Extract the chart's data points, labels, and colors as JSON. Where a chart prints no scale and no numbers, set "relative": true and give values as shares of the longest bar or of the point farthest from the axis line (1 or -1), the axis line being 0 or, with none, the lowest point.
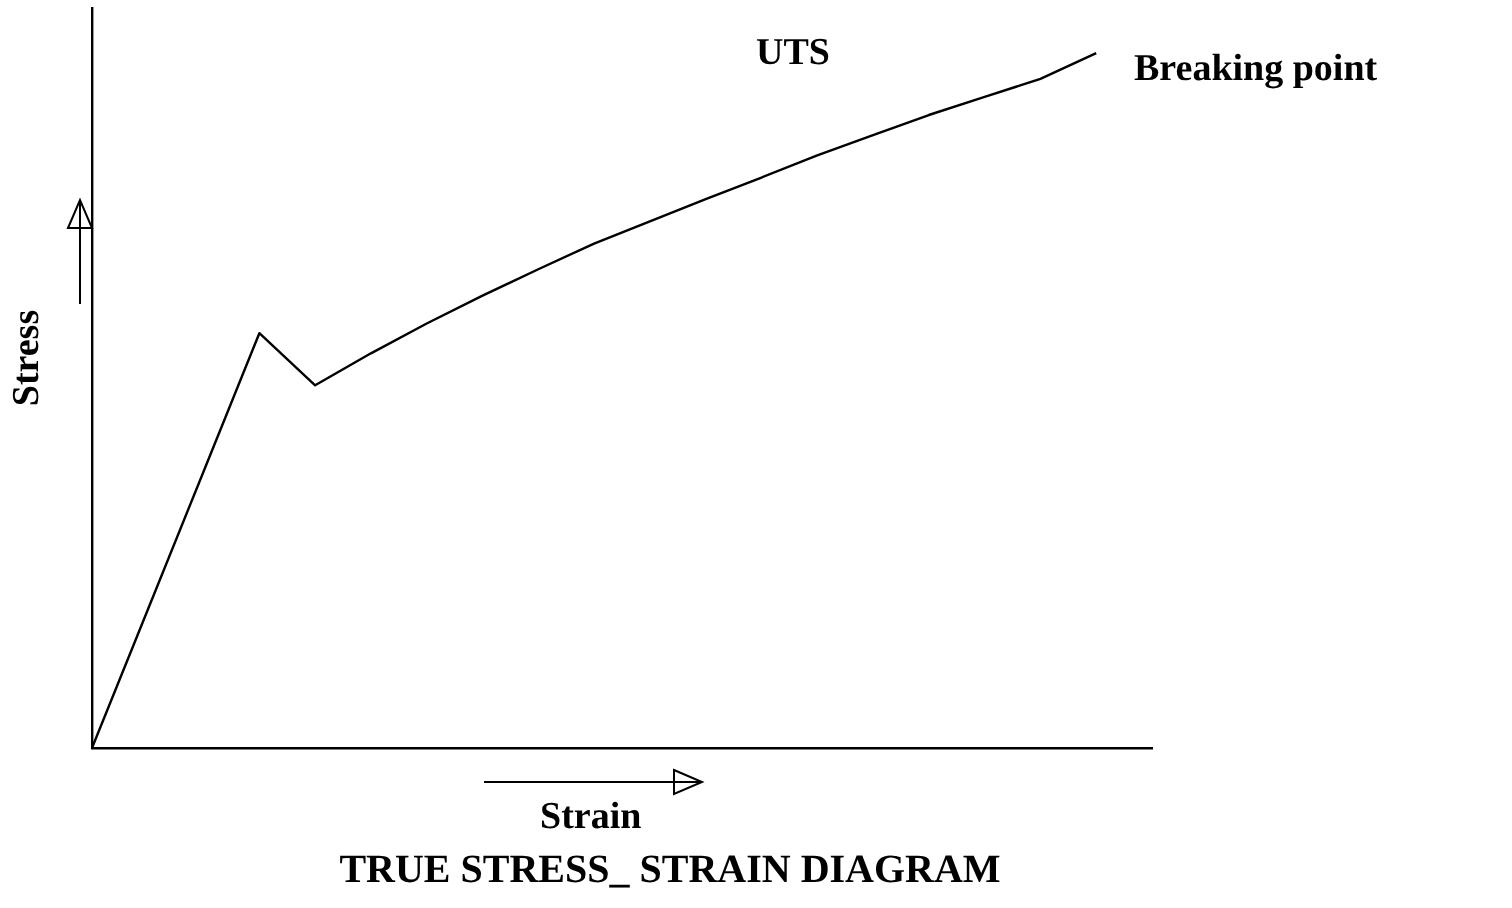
{
  "chart_data": {
    "type": "line",
    "title": "TRUE STRESS_ STRAIN DIAGRAM",
    "xlabel": "Strain",
    "ylabel": "Stress",
    "relative": true,
    "color": "#000000",
    "marker": "none",
    "legend": false,
    "grid": false,
    "categories": [
      null,
      null,
      null,
      null,
      null,
      null,
      null,
      null,
      null,
      null,
      null,
      null,
      null,
      null,
      null,
      null,
      null,
      null,
      null,
      null
    ],
    "values": [
      0,
      0.199,
      0.398,
      0.597,
      0.522,
      0.568,
      0.611,
      0.651,
      0.689,
      0.726,
      0.758,
      0.79,
      0.821,
      0.853,
      0.882,
      0.911,
      0.937,
      0.963,
      1,
      null
    ],
    "annotations": [
      "UTS",
      "Breaking point"
    ]
  }
}
